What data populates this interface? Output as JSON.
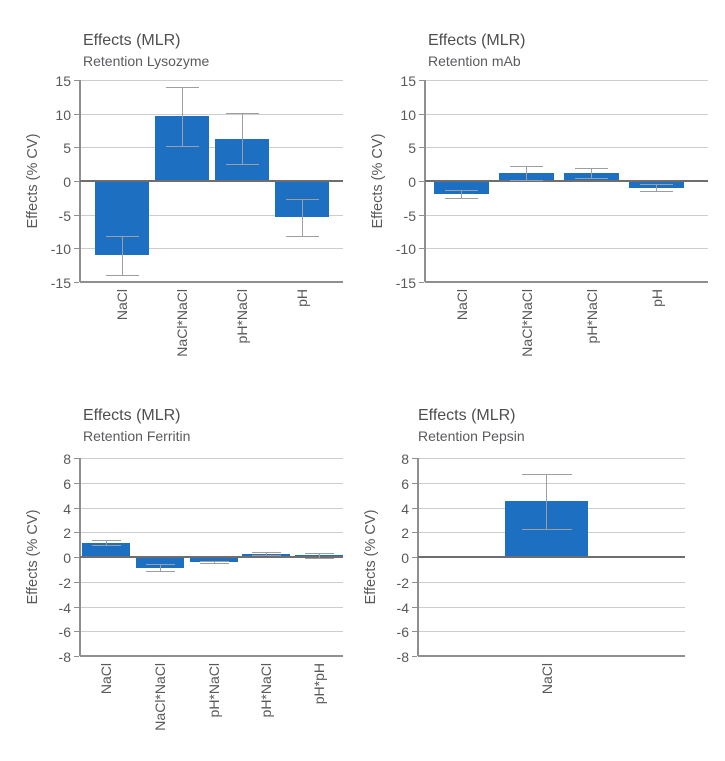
{
  "figure_title": "Effects (MLR) bar charts",
  "colors": {
    "bar": "#1d6fc2",
    "gridline": "#cdcdcd",
    "zero_line": "#6e6e6e",
    "axis": "#8f8f8f",
    "error_bar": "#9e9e9e",
    "tick_text": "#58595b",
    "title_text": "#4d4e50",
    "background": "#ffffff"
  },
  "chart_data": [
    {
      "type": "bar",
      "title": "Effects (MLR)",
      "subtitle": "Retention Lysozyme",
      "ylabel": "Effects (% CV)",
      "categories": [
        "NaCl",
        "NaCl*NaCl",
        "pH*NaCl",
        "pH"
      ],
      "values": [
        -11.0,
        9.6,
        6.3,
        -5.4
      ],
      "errors": [
        2.9,
        4.4,
        3.8,
        2.8
      ],
      "ylim": [
        -15,
        15
      ],
      "yticks": [
        15,
        10,
        5,
        0,
        -5,
        -10,
        -15
      ],
      "grid": "horizontal",
      "legend": "none"
    },
    {
      "type": "bar",
      "title": "Effects (MLR)",
      "subtitle": "Retention mAb",
      "ylabel": "Effects (% CV)",
      "categories": [
        "NaCl",
        "NaCl*NaCl",
        "pH*NaCl",
        "pH"
      ],
      "values": [
        -1.9,
        1.2,
        1.2,
        -1.0
      ],
      "errors": [
        0.6,
        1.0,
        0.7,
        0.5
      ],
      "ylim": [
        -15,
        15
      ],
      "yticks": [
        15,
        10,
        5,
        0,
        -5,
        -10,
        -15
      ],
      "grid": "horizontal",
      "legend": "none"
    },
    {
      "type": "bar",
      "title": "Effects (MLR)",
      "subtitle": "Retention Ferritin",
      "ylabel": "Effects (% CV)",
      "categories": [
        "NaCl",
        "NaCl*NaCl",
        "pH*NaCl",
        "pH*NaCl",
        "pH*pH"
      ],
      "values": [
        1.15,
        -0.85,
        -0.4,
        0.25,
        0.15
      ],
      "errors": [
        0.2,
        0.25,
        0.1,
        0.12,
        0.2
      ],
      "ylim": [
        -8,
        8
      ],
      "yticks": [
        8,
        6,
        4,
        2,
        0,
        -2,
        -4,
        -6,
        -8
      ],
      "grid": "horizontal",
      "legend": "none"
    },
    {
      "type": "bar",
      "title": "Effects (MLR)",
      "subtitle": "Retention Pepsin",
      "ylabel": "Effects (% CV)",
      "categories": [
        "NaCl"
      ],
      "values": [
        4.5
      ],
      "errors": [
        2.2
      ],
      "ylim": [
        -8,
        8
      ],
      "yticks": [
        8,
        6,
        4,
        2,
        0,
        -2,
        -4,
        -6,
        -8
      ],
      "grid": "horizontal",
      "legend": "none"
    }
  ]
}
